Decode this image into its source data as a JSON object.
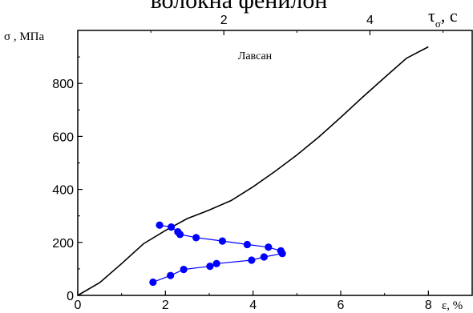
{
  "chart_data": {
    "type": "line",
    "title": "волокна фенилон",
    "annotation": "Лавсан",
    "ylabel": "σ , МПа",
    "xlabel": "ε, %",
    "x2label_main": "τ",
    "x2label_sub": "σ",
    "x2label_unit": ", с",
    "xlim": [
      0,
      9
    ],
    "ylim": [
      0,
      1000
    ],
    "x2lim": [
      0,
      5.4
    ],
    "x_ticks": [
      0,
      2,
      4,
      6,
      8
    ],
    "y_ticks": [
      0,
      200,
      400,
      600,
      800
    ],
    "x2_ticks": [
      2,
      4
    ],
    "grid": false,
    "series": [
      {
        "axis": "bottom",
        "color": "#000000",
        "x": [
          0,
          0.5,
          1.0,
          1.5,
          2.0,
          2.5,
          3.0,
          3.5,
          4.0,
          4.5,
          5.0,
          5.5,
          6.0,
          6.5,
          7.0,
          7.5,
          8.0
        ],
        "y": [
          0,
          48,
          120,
          195,
          245,
          290,
          322,
          358,
          410,
          468,
          530,
          598,
          672,
          748,
          822,
          895,
          938
        ]
      },
      {
        "axis": "top",
        "color": "#0000ff",
        "marker": "circle",
        "x": [
          1.12,
          1.28,
          1.37,
          1.4,
          1.62,
          1.98,
          2.32,
          2.61,
          2.78,
          2.8,
          2.55,
          2.38,
          1.9,
          1.81,
          1.45,
          1.27,
          1.03
        ],
        "y": [
          265,
          258,
          240,
          230,
          218,
          205,
          192,
          182,
          168,
          158,
          145,
          133,
          120,
          110,
          98,
          75,
          50
        ]
      }
    ]
  }
}
